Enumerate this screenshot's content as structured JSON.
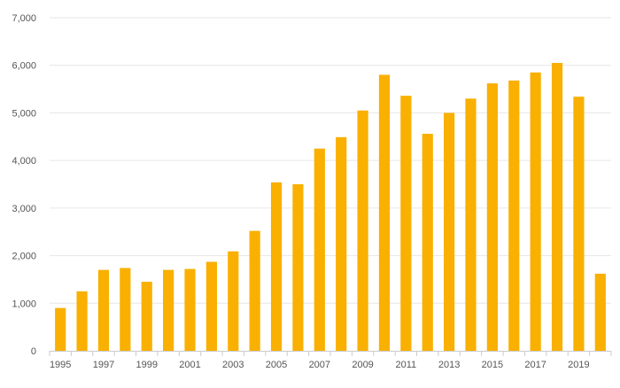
{
  "chart_data": {
    "type": "bar",
    "categories": [
      "1995",
      "1996",
      "1997",
      "1998",
      "1999",
      "2000",
      "2001",
      "2002",
      "2003",
      "2004",
      "2005",
      "2006",
      "2007",
      "2008",
      "2009",
      "2010",
      "2011",
      "2012",
      "2013",
      "2014",
      "2015",
      "2016",
      "2017",
      "2018",
      "2019",
      "2020"
    ],
    "values": [
      900,
      1250,
      1700,
      1740,
      1450,
      1700,
      1720,
      1870,
      2090,
      2520,
      3540,
      3500,
      4250,
      4490,
      5050,
      5800,
      5360,
      4560,
      5000,
      5300,
      5620,
      5680,
      5850,
      6050,
      5340,
      1620
    ],
    "x_tick_labels": [
      "1995",
      "1997",
      "1999",
      "2001",
      "2003",
      "2005",
      "2007",
      "2009",
      "2011",
      "2013",
      "2015",
      "2017",
      "2019"
    ],
    "y_tick_labels": [
      "0",
      "1,000",
      "2,000",
      "3,000",
      "4,000",
      "5,000",
      "6,000",
      "7,000"
    ],
    "y_ticks": [
      0,
      1000,
      2000,
      3000,
      4000,
      5000,
      6000,
      7000
    ],
    "ylim": [
      0,
      7000
    ],
    "title": "",
    "xlabel": "",
    "ylabel": "",
    "grid": true,
    "bar_color": "#F9B000",
    "grid_color": "#e6e6e6",
    "axis_color": "#cccccc"
  }
}
